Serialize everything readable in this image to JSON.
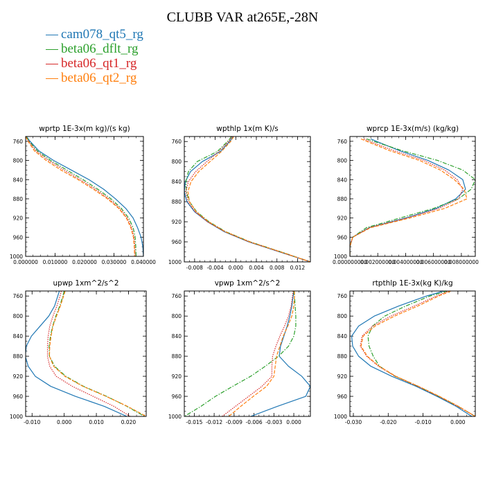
{
  "title": "CLUBB VAR at265E,-28N",
  "colors": {
    "cam078_qt5_rg": "#1f77b4",
    "beta06_dflt_rg": "#2ca02c",
    "beta06_qt1_rg": "#d62728",
    "beta06_qt2_rg": "#ff7f0e"
  },
  "legend": [
    {
      "name": "cam078_qt5_rg",
      "color": "#1f77b4"
    },
    {
      "name": "beta06_dflt_rg",
      "color": "#2ca02c"
    },
    {
      "name": "beta06_qt1_rg",
      "color": "#d62728"
    },
    {
      "name": "beta06_qt2_rg",
      "color": "#ff7f0e"
    }
  ],
  "chart_data": [
    {
      "type": "line",
      "title": "wprtp  1E-3x(m kg)/(s kg)",
      "xlim": [
        0.0,
        0.04
      ],
      "ylim": [
        1000,
        750
      ],
      "xticks": [
        0.0,
        0.01,
        0.02,
        0.03,
        0.04
      ],
      "xtick_labels": [
        "0.000000",
        "0.010000",
        "0.020000",
        "0.030000",
        "0.040000"
      ],
      "yticks": [
        760,
        800,
        840,
        880,
        920,
        960,
        1000
      ],
      "y": [
        750,
        760,
        780,
        800,
        820,
        840,
        860,
        880,
        900,
        920,
        940,
        960,
        980,
        1000
      ],
      "series": [
        {
          "name": "cam078_qt5_rg",
          "style": "solid",
          "values": [
            0.0003,
            0.0015,
            0.0045,
            0.0095,
            0.0155,
            0.0215,
            0.0265,
            0.0305,
            0.034,
            0.0365,
            0.038,
            0.0392,
            0.0398,
            0.04
          ]
        },
        {
          "name": "beta06_dflt_rg",
          "style": "dashdot",
          "values": [
            0.0002,
            0.0012,
            0.004,
            0.0085,
            0.014,
            0.0195,
            0.0245,
            0.029,
            0.0325,
            0.035,
            0.0365,
            0.0372,
            0.0374,
            0.0375
          ]
        },
        {
          "name": "beta06_qt1_rg",
          "style": "dotted",
          "values": [
            0.0001,
            0.001,
            0.0035,
            0.0078,
            0.013,
            0.0185,
            0.0237,
            0.0283,
            0.032,
            0.0345,
            0.036,
            0.0368,
            0.0371,
            0.0372
          ]
        },
        {
          "name": "beta06_qt2_rg",
          "style": "dashed",
          "values": [
            0.0,
            0.0008,
            0.003,
            0.007,
            0.012,
            0.0178,
            0.023,
            0.0278,
            0.0316,
            0.0342,
            0.0357,
            0.0366,
            0.0369,
            0.037
          ]
        }
      ]
    },
    {
      "type": "line",
      "title": "wpthlp  1x(m K)/s",
      "xlim": [
        -0.01,
        0.0145
      ],
      "ylim": [
        1000,
        750
      ],
      "xticks": [
        -0.008,
        -0.004,
        0.0,
        0.004,
        0.008,
        0.012
      ],
      "xtick_labels": [
        "-0.008",
        "-0.004",
        "0.000",
        "0.004",
        "0.008",
        "0.012"
      ],
      "yticks": [
        760,
        800,
        840,
        880,
        920,
        960,
        1000
      ],
      "y": [
        750,
        760,
        780,
        800,
        820,
        840,
        860,
        880,
        900,
        920,
        940,
        960,
        980,
        1000
      ],
      "series": [
        {
          "name": "cam078_qt5_rg",
          "style": "solid",
          "values": [
            -0.0005,
            -0.0012,
            -0.003,
            -0.0065,
            -0.0088,
            -0.0098,
            -0.01,
            -0.0095,
            -0.008,
            -0.0055,
            -0.0022,
            0.0025,
            0.0085,
            0.0145
          ]
        },
        {
          "name": "beta06_dflt_rg",
          "style": "dashdot",
          "values": [
            -0.0008,
            -0.0016,
            -0.0036,
            -0.0075,
            -0.0092,
            -0.0097,
            -0.0096,
            -0.009,
            -0.0076,
            -0.0052,
            -0.0019,
            0.0028,
            0.0088,
            0.0145
          ]
        },
        {
          "name": "beta06_qt1_rg",
          "style": "dotted",
          "values": [
            -0.0007,
            -0.0014,
            -0.0033,
            -0.0056,
            -0.0078,
            -0.0092,
            -0.0097,
            -0.0093,
            -0.0079,
            -0.0055,
            -0.0021,
            0.0026,
            0.0086,
            0.0145
          ]
        },
        {
          "name": "beta06_qt2_rg",
          "style": "dashed",
          "values": [
            -0.0004,
            -0.001,
            -0.0028,
            -0.005,
            -0.0072,
            -0.0087,
            -0.0093,
            -0.009,
            -0.0077,
            -0.0053,
            -0.002,
            0.0027,
            0.0087,
            0.0145
          ]
        }
      ]
    },
    {
      "type": "line",
      "title": "wprcp  1E-3x(m/s) (kg/kg)",
      "xlim": [
        0.0,
        0.009
      ],
      "ylim": [
        1000,
        750
      ],
      "xticks": [
        0.0,
        0.002,
        0.004,
        0.006,
        0.008
      ],
      "xtick_labels": [
        "0.000000000",
        "0.002000000",
        "0.004000000",
        "0.006000000",
        "0.008000000"
      ],
      "yticks": [
        760,
        800,
        840,
        880,
        920,
        960,
        1000
      ],
      "y": [
        755,
        760,
        780,
        800,
        820,
        840,
        860,
        880,
        900,
        920,
        940,
        960,
        980,
        1000
      ],
      "series": [
        {
          "name": "cam078_qt5_rg",
          "style": "solid",
          "values": [
            0.0015,
            0.0019,
            0.0036,
            0.0056,
            0.0071,
            0.0081,
            0.0083,
            0.0076,
            0.0062,
            0.004,
            0.0014,
            0.0002,
            0.0,
            0.0
          ]
        },
        {
          "name": "beta06_dflt_rg",
          "style": "dashdot",
          "values": [
            0.0012,
            0.0017,
            0.0038,
            0.0063,
            0.0081,
            0.009,
            0.0087,
            0.0078,
            0.006,
            0.0036,
            0.0012,
            0.0002,
            0.0,
            0.0
          ]
        },
        {
          "name": "beta06_qt1_rg",
          "style": "dotted",
          "values": [
            0.001,
            0.0014,
            0.0032,
            0.0053,
            0.0068,
            0.0077,
            0.0081,
            0.0078,
            0.0064,
            0.0041,
            0.0014,
            0.0002,
            0.0,
            0.0
          ]
        },
        {
          "name": "beta06_qt2_rg",
          "style": "dashed",
          "values": [
            0.0008,
            0.0012,
            0.0029,
            0.005,
            0.0065,
            0.0075,
            0.0082,
            0.0084,
            0.0068,
            0.0043,
            0.0015,
            0.0002,
            0.0,
            0.0
          ]
        }
      ]
    },
    {
      "type": "line",
      "title": "upwp  1xm^2/s^2",
      "xlim": [
        -0.012,
        0.0255
      ],
      "ylim": [
        1000,
        750
      ],
      "xticks": [
        -0.01,
        0.0,
        0.01,
        0.02
      ],
      "xtick_labels": [
        "-0.010",
        "0.000",
        "0.010",
        "0.020"
      ],
      "yticks": [
        760,
        800,
        840,
        880,
        920,
        960,
        1000
      ],
      "y": [
        750,
        760,
        780,
        800,
        820,
        840,
        860,
        880,
        900,
        920,
        940,
        960,
        980,
        1000
      ],
      "series": [
        {
          "name": "cam078_qt5_rg",
          "style": "solid",
          "values": [
            -0.0015,
            -0.002,
            -0.003,
            -0.0048,
            -0.0075,
            -0.0102,
            -0.0118,
            -0.0121,
            -0.0112,
            -0.009,
            -0.0042,
            0.0035,
            0.0125,
            0.0195
          ]
        },
        {
          "name": "beta06_dflt_rg",
          "style": "dashdot",
          "values": [
            0.0,
            -0.0004,
            -0.0014,
            -0.0026,
            -0.0036,
            -0.0043,
            -0.0047,
            -0.0046,
            -0.003,
            0.0005,
            0.006,
            0.0132,
            0.0195,
            0.025
          ]
        },
        {
          "name": "beta06_qt1_rg",
          "style": "dotted",
          "values": [
            -0.0009,
            -0.0013,
            -0.0023,
            -0.0035,
            -0.0045,
            -0.005,
            -0.0052,
            -0.0052,
            -0.0045,
            -0.0025,
            0.0025,
            0.009,
            0.0155,
            0.0205
          ]
        },
        {
          "name": "beta06_qt2_rg",
          "style": "dashed",
          "values": [
            0.0003,
            -0.0002,
            -0.0012,
            -0.0024,
            -0.0035,
            -0.0041,
            -0.0045,
            -0.0046,
            -0.0033,
            0.0002,
            0.0058,
            0.013,
            0.0197,
            0.0255
          ]
        }
      ]
    },
    {
      "type": "line",
      "title": "vpwp  1xm^2/s^2",
      "xlim": [
        -0.0165,
        0.0025
      ],
      "ylim": [
        1000,
        750
      ],
      "xticks": [
        -0.015,
        -0.012,
        -0.009,
        -0.006,
        -0.003,
        0.0
      ],
      "xtick_labels": [
        "-0.015",
        "-0.012",
        "-0.009",
        "-0.006",
        "-0.003",
        "0.000"
      ],
      "yticks": [
        760,
        800,
        840,
        880,
        920,
        960,
        1000
      ],
      "y": [
        750,
        760,
        780,
        800,
        820,
        840,
        860,
        880,
        900,
        920,
        940,
        960,
        980,
        1000
      ],
      "series": [
        {
          "name": "cam078_qt5_rg",
          "style": "solid",
          "values": [
            0.0,
            -0.0001,
            -0.0003,
            -0.0006,
            -0.001,
            -0.0015,
            -0.002,
            -0.0022,
            -0.0008,
            0.0012,
            0.0025,
            0.0018,
            -0.0025,
            -0.0065
          ]
        },
        {
          "name": "beta06_dflt_rg",
          "style": "dashdot",
          "values": [
            0.0,
            0.0001,
            0.0002,
            0.0003,
            0.0003,
            0.0,
            -0.0008,
            -0.0023,
            -0.0043,
            -0.0065,
            -0.0092,
            -0.0118,
            -0.014,
            -0.0165
          ]
        },
        {
          "name": "beta06_qt1_rg",
          "style": "dotted",
          "values": [
            -0.0001,
            -0.0002,
            -0.0004,
            -0.0008,
            -0.0014,
            -0.0021,
            -0.0027,
            -0.0032,
            -0.0033,
            -0.0033,
            -0.0048,
            -0.0068,
            -0.0088,
            -0.0108
          ]
        },
        {
          "name": "beta06_qt2_rg",
          "style": "dashed",
          "values": [
            0.0001,
            0.0001,
            0.0,
            -0.0003,
            -0.0009,
            -0.0016,
            -0.0021,
            -0.0026,
            -0.0028,
            -0.003,
            -0.0041,
            -0.0061,
            -0.008,
            -0.0098
          ]
        }
      ]
    },
    {
      "type": "line",
      "title": "rtpthlp  1E-3x(kg K)/kg",
      "xlim": [
        -0.031,
        0.005
      ],
      "ylim": [
        1000,
        750
      ],
      "xticks": [
        -0.03,
        -0.02,
        -0.01,
        0.0
      ],
      "xtick_labels": [
        "-0.030",
        "-0.020",
        "-0.010",
        "0.000"
      ],
      "yticks": [
        760,
        800,
        840,
        880,
        920,
        960,
        1000
      ],
      "y": [
        750,
        760,
        780,
        800,
        820,
        840,
        860,
        880,
        900,
        920,
        940,
        960,
        980,
        1000
      ],
      "series": [
        {
          "name": "cam078_qt5_rg",
          "style": "solid",
          "values": [
            -0.004,
            -0.009,
            -0.017,
            -0.024,
            -0.0285,
            -0.0305,
            -0.0302,
            -0.0285,
            -0.025,
            -0.019,
            -0.012,
            -0.006,
            -0.0005,
            0.004
          ]
        },
        {
          "name": "beta06_dflt_rg",
          "style": "dashdot",
          "values": [
            -0.003,
            -0.008,
            -0.015,
            -0.021,
            -0.0245,
            -0.0258,
            -0.0255,
            -0.0243,
            -0.0225,
            -0.018,
            -0.0115,
            -0.0055,
            0.0,
            0.005
          ]
        },
        {
          "name": "beta06_qt1_rg",
          "style": "dotted",
          "values": [
            -0.0025,
            -0.0062,
            -0.0125,
            -0.0192,
            -0.0245,
            -0.0275,
            -0.028,
            -0.0262,
            -0.0228,
            -0.018,
            -0.0115,
            -0.0055,
            0.0,
            0.005
          ]
        },
        {
          "name": "beta06_qt2_rg",
          "style": "dashed",
          "values": [
            -0.002,
            -0.0055,
            -0.0115,
            -0.0182,
            -0.0238,
            -0.0272,
            -0.0278,
            -0.026,
            -0.0226,
            -0.0178,
            -0.0113,
            -0.0053,
            0.0002,
            0.005
          ]
        }
      ]
    }
  ]
}
